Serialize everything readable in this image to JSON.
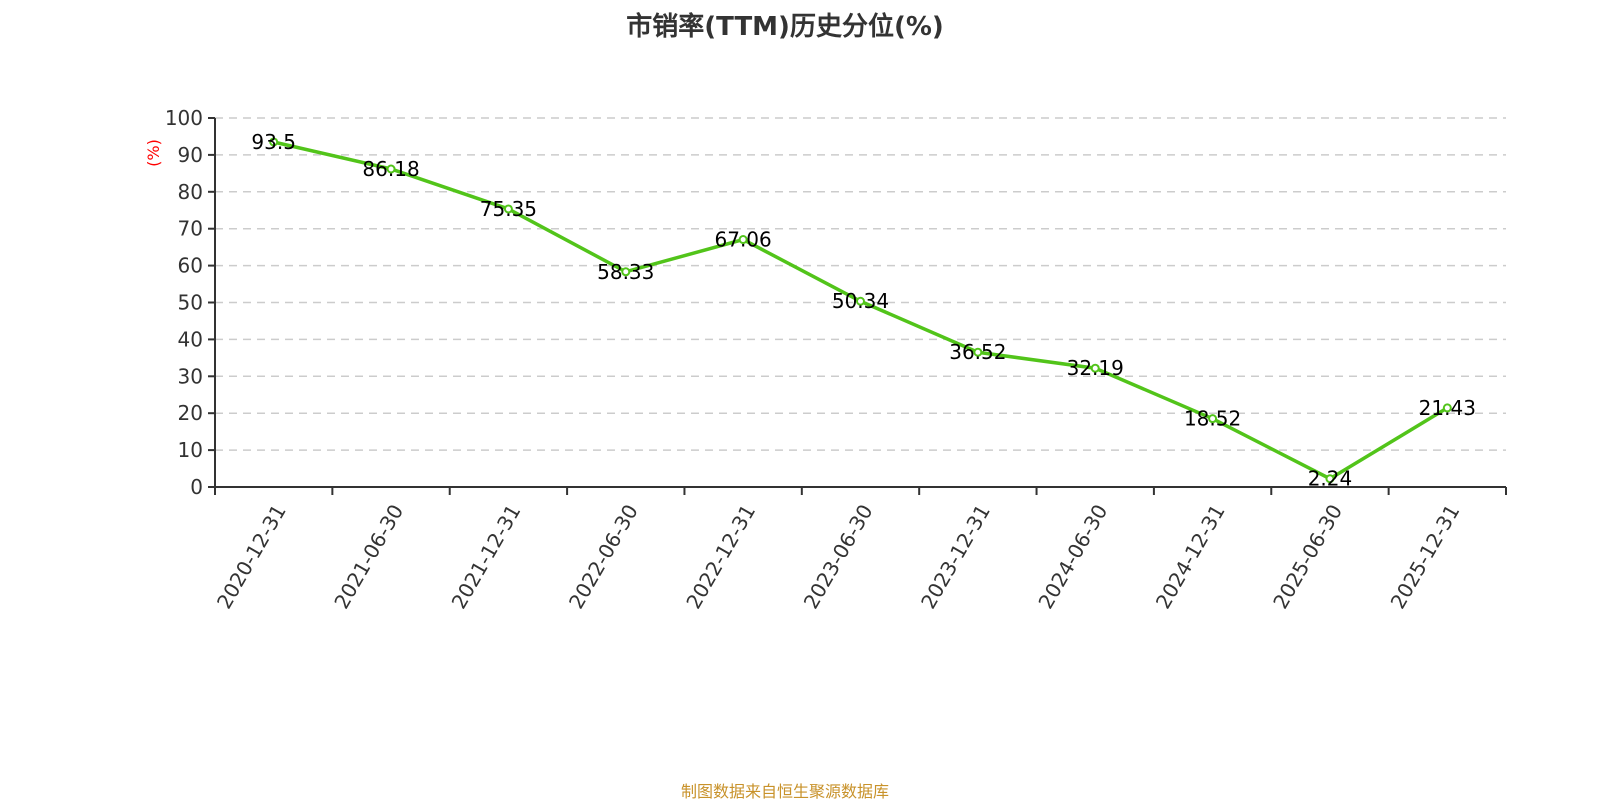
{
  "chart_data": {
    "type": "line",
    "title": "市销率(TTM)历史分位(%)",
    "ylabel": "(%)",
    "xlabel": "",
    "categories": [
      "2020-12-31",
      "2021-06-30",
      "2021-12-31",
      "2022-06-30",
      "2022-12-31",
      "2023-06-30",
      "2023-12-31",
      "2024-06-30",
      "2024-12-31",
      "2025-06-30",
      "2025-12-31"
    ],
    "values": [
      93.5,
      86.18,
      75.35,
      58.33,
      67.06,
      50.34,
      36.52,
      32.19,
      18.52,
      2.24,
      21.43
    ],
    "data_labels": [
      "93.5",
      "86.18",
      "75.35",
      "58.33",
      "67.06",
      "50.34",
      "36.52",
      "32.19",
      "18.52",
      "2.24",
      "21.43"
    ],
    "ylim": [
      0,
      100
    ],
    "yticks": [
      "0",
      "10",
      "20",
      "30",
      "40",
      "50",
      "60",
      "70",
      "80",
      "90",
      "100"
    ],
    "grid": "horizontal dashed",
    "line_color": "#52c41a",
    "ylabel_color": "#ff0000"
  },
  "source": "制图数据来自恒生聚源数据库"
}
